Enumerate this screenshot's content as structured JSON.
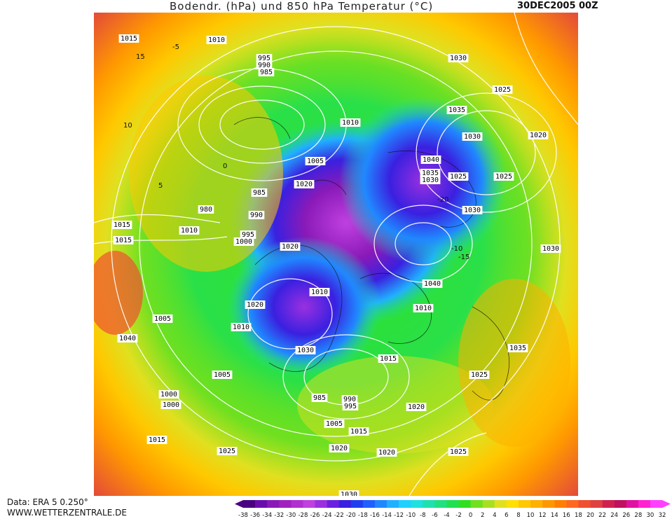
{
  "title": {
    "main": "Bodendr. (hPa) und 850 hPa Temperatur (°C)",
    "datetime": "30DEC2005 00Z"
  },
  "credits": {
    "data_source": "Data: ERA 5 0.250°",
    "website": "WWW.WETTERZENTRALE.DE"
  },
  "colors": {
    "scale": [
      "#4b0082",
      "#6a0dad",
      "#8a1ab8",
      "#a020c0",
      "#b030d0",
      "#c040e0",
      "#9a30e0",
      "#6a20e0",
      "#3a20e0",
      "#2040f0",
      "#2060ff",
      "#2088ff",
      "#20b0ff",
      "#20d0ff",
      "#20e0e0",
      "#20e0b0",
      "#20e080",
      "#20e050",
      "#30e020",
      "#70e020",
      "#a8e020",
      "#e0e020",
      "#ffe000",
      "#ffc800",
      "#ffb000",
      "#ff9800",
      "#ff8000",
      "#ff6820",
      "#f05030",
      "#e04040",
      "#d02050",
      "#c01060",
      "#e010a0",
      "#ff20d0",
      "#ff40ff"
    ],
    "map_cold_core": "#8a1ab8",
    "map_warm": "#f08020"
  },
  "scale": {
    "labels": [
      "-38",
      "-36",
      "-34",
      "-32",
      "-30",
      "-28",
      "-26",
      "-24",
      "-22",
      "-20",
      "-18",
      "-16",
      "-14",
      "-12",
      "-10",
      "-8",
      "-6",
      "-4",
      "-2",
      "0",
      "2",
      "4",
      "6",
      "8",
      "10",
      "12",
      "14",
      "16",
      "18",
      "20",
      "22",
      "24",
      "26",
      "28",
      "30",
      "32"
    ]
  },
  "pressure_labels": [
    "1015",
    "1010",
    "995",
    "990",
    "985",
    "1030",
    "1035",
    "1025",
    "1010",
    "1030",
    "1020",
    "1005",
    "1040",
    "1025",
    "1035",
    "1030",
    "1020",
    "985",
    "980",
    "990",
    "995",
    "1000",
    "1015",
    "1010",
    "1040",
    "1025",
    "1030",
    "1020",
    "1015",
    "1010",
    "1005",
    "1040",
    "1010",
    "1020",
    "1030",
    "1005",
    "1015",
    "1000",
    "985",
    "990",
    "995",
    "1005",
    "1015",
    "1025",
    "1020",
    "1030",
    "1015",
    "1015",
    "1025",
    "1020",
    "1035",
    "1030",
    "1020",
    "1025",
    "1010",
    "1000"
  ],
  "isotherm_labels": [
    "-5",
    "0",
    "5",
    "10",
    "15",
    "-10",
    "-15",
    "-20"
  ]
}
